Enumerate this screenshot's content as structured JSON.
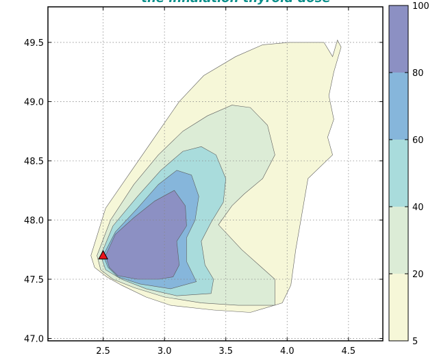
{
  "chart_data": {
    "type": "contour",
    "title": "the inhalation thyroid dose",
    "xlim": [
      2.05,
      4.78
    ],
    "ylim": [
      46.98,
      49.8
    ],
    "x_ticks": [
      "2.5",
      "3.0",
      "3.5",
      "4.0",
      "4.5"
    ],
    "y_ticks": [
      "47.0",
      "47.5",
      "48.0",
      "48.5",
      "49.0",
      "49.5"
    ],
    "grid": true,
    "colorbar": {
      "levels": [
        5,
        20,
        40,
        60,
        80,
        100
      ],
      "labels": [
        "5",
        "20",
        "40",
        "60",
        "80",
        "100"
      ],
      "colors": [
        "#f6f7d8",
        "#dcecd6",
        "#a9dcdc",
        "#86b6db",
        "#8c90c3"
      ]
    },
    "contours": [
      {
        "level": 5,
        "color": "#f6f7d8",
        "points": [
          [
            2.4,
            47.7
          ],
          [
            2.52,
            48.1
          ],
          [
            2.72,
            48.4
          ],
          [
            2.92,
            48.7
          ],
          [
            3.12,
            49.0
          ],
          [
            3.32,
            49.22
          ],
          [
            3.58,
            49.38
          ],
          [
            3.8,
            49.48
          ],
          [
            4.02,
            49.5
          ],
          [
            4.3,
            49.5
          ],
          [
            4.37,
            49.38
          ],
          [
            4.41,
            49.52
          ],
          [
            4.44,
            49.46
          ],
          [
            4.38,
            49.25
          ],
          [
            4.34,
            49.05
          ],
          [
            4.38,
            48.85
          ],
          [
            4.33,
            48.7
          ],
          [
            4.37,
            48.55
          ],
          [
            4.17,
            48.35
          ],
          [
            4.12,
            48.05
          ],
          [
            4.07,
            47.75
          ],
          [
            4.03,
            47.45
          ],
          [
            3.96,
            47.3
          ],
          [
            3.7,
            47.22
          ],
          [
            3.4,
            47.24
          ],
          [
            3.05,
            47.28
          ],
          [
            2.85,
            47.35
          ],
          [
            2.65,
            47.45
          ],
          [
            2.53,
            47.52
          ],
          [
            2.43,
            47.6
          ]
        ]
      },
      {
        "level": 20,
        "color": "#dcecd6",
        "points": [
          [
            2.45,
            47.7
          ],
          [
            2.56,
            48.0
          ],
          [
            2.75,
            48.3
          ],
          [
            2.95,
            48.55
          ],
          [
            3.15,
            48.75
          ],
          [
            3.35,
            48.88
          ],
          [
            3.55,
            48.97
          ],
          [
            3.7,
            48.95
          ],
          [
            3.84,
            48.8
          ],
          [
            3.9,
            48.55
          ],
          [
            3.8,
            48.35
          ],
          [
            3.65,
            48.22
          ],
          [
            3.55,
            48.12
          ],
          [
            3.44,
            47.96
          ],
          [
            3.63,
            47.75
          ],
          [
            3.9,
            47.5
          ],
          [
            3.9,
            47.28
          ],
          [
            3.6,
            47.28
          ],
          [
            3.3,
            47.3
          ],
          [
            3.0,
            47.35
          ],
          [
            2.75,
            47.43
          ],
          [
            2.58,
            47.5
          ],
          [
            2.48,
            47.58
          ]
        ]
      },
      {
        "level": 40,
        "color": "#a9dcdc",
        "points": [
          [
            2.48,
            47.7
          ],
          [
            2.58,
            47.95
          ],
          [
            2.78,
            48.2
          ],
          [
            2.97,
            48.42
          ],
          [
            3.15,
            48.58
          ],
          [
            3.3,
            48.62
          ],
          [
            3.42,
            48.55
          ],
          [
            3.5,
            48.35
          ],
          [
            3.48,
            48.15
          ],
          [
            3.38,
            47.98
          ],
          [
            3.3,
            47.82
          ],
          [
            3.33,
            47.62
          ],
          [
            3.4,
            47.5
          ],
          [
            3.38,
            47.38
          ],
          [
            3.1,
            47.36
          ],
          [
            2.85,
            47.42
          ],
          [
            2.65,
            47.5
          ],
          [
            2.52,
            47.58
          ]
        ]
      },
      {
        "level": 60,
        "color": "#86b6db",
        "points": [
          [
            2.5,
            47.7
          ],
          [
            2.6,
            47.9
          ],
          [
            2.78,
            48.1
          ],
          [
            2.95,
            48.3
          ],
          [
            3.1,
            48.42
          ],
          [
            3.22,
            48.38
          ],
          [
            3.28,
            48.2
          ],
          [
            3.25,
            48.0
          ],
          [
            3.18,
            47.85
          ],
          [
            3.18,
            47.65
          ],
          [
            3.26,
            47.48
          ],
          [
            3.05,
            47.42
          ],
          [
            2.8,
            47.46
          ],
          [
            2.62,
            47.52
          ],
          [
            2.54,
            47.6
          ]
        ]
      },
      {
        "level": 80,
        "color": "#8c90c3",
        "points": [
          [
            2.52,
            47.7
          ],
          [
            2.6,
            47.88
          ],
          [
            2.75,
            48.02
          ],
          [
            2.92,
            48.16
          ],
          [
            3.08,
            48.25
          ],
          [
            3.17,
            48.12
          ],
          [
            3.18,
            47.95
          ],
          [
            3.1,
            47.82
          ],
          [
            3.12,
            47.62
          ],
          [
            3.07,
            47.52
          ],
          [
            2.95,
            47.5
          ],
          [
            2.78,
            47.5
          ],
          [
            2.62,
            47.53
          ],
          [
            2.55,
            47.6
          ]
        ]
      }
    ],
    "marker": {
      "x": 2.5,
      "y": 47.7,
      "color": "#e8141c",
      "shape": "triangle"
    }
  }
}
